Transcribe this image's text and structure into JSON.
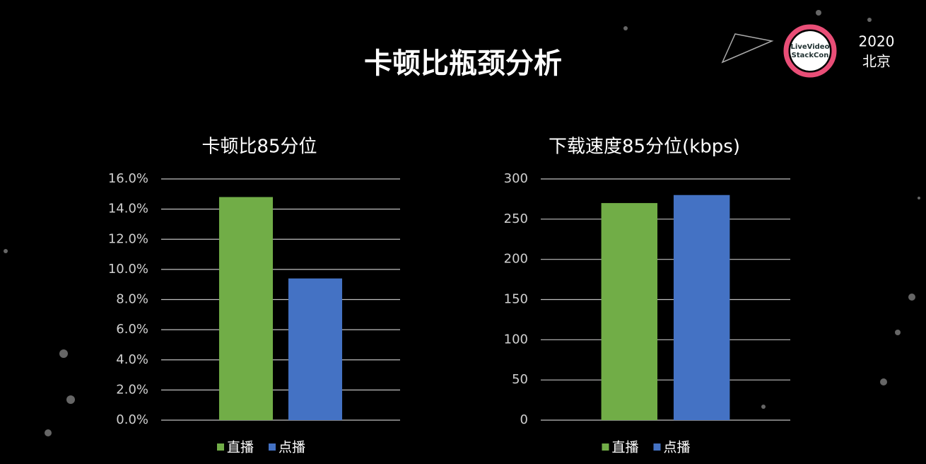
{
  "header": {
    "title": "卡顿比瓶颈分析",
    "logo": [
      "LiveVideo",
      "StackCon"
    ],
    "year": "2020",
    "city": "北京"
  },
  "chart_data": [
    {
      "type": "bar",
      "title": "卡顿比85分位",
      "categories": [
        null
      ],
      "series": [
        {
          "name": "直播",
          "color": "#71ad47",
          "values": [
            14.8
          ]
        },
        {
          "name": "点播",
          "color": "#4472c4",
          "values": [
            9.4
          ]
        }
      ],
      "ylim": [
        0,
        16
      ],
      "yticks": [
        {
          "value": 0,
          "label": "0.0%"
        },
        {
          "value": 2,
          "label": "2.0%"
        },
        {
          "value": 4,
          "label": "4.0%"
        },
        {
          "value": 6,
          "label": "6.0%"
        },
        {
          "value": 8,
          "label": "8.0%"
        },
        {
          "value": 10,
          "label": "10.0%"
        },
        {
          "value": 12,
          "label": "12.0%"
        },
        {
          "value": 14,
          "label": "14.0%"
        },
        {
          "value": 16,
          "label": "16.0%"
        }
      ],
      "grid": true,
      "legend": "bottom"
    },
    {
      "type": "bar",
      "title": "下载速度85分位(kbps)",
      "categories": [
        null
      ],
      "series": [
        {
          "name": "直播",
          "color": "#71ad47",
          "values": [
            270
          ]
        },
        {
          "name": "点播",
          "color": "#4472c4",
          "values": [
            280
          ]
        }
      ],
      "ylim": [
        0,
        300
      ],
      "yticks": [
        0,
        50,
        100,
        150,
        200,
        250,
        300
      ],
      "grid": true,
      "legend": "bottom"
    }
  ]
}
